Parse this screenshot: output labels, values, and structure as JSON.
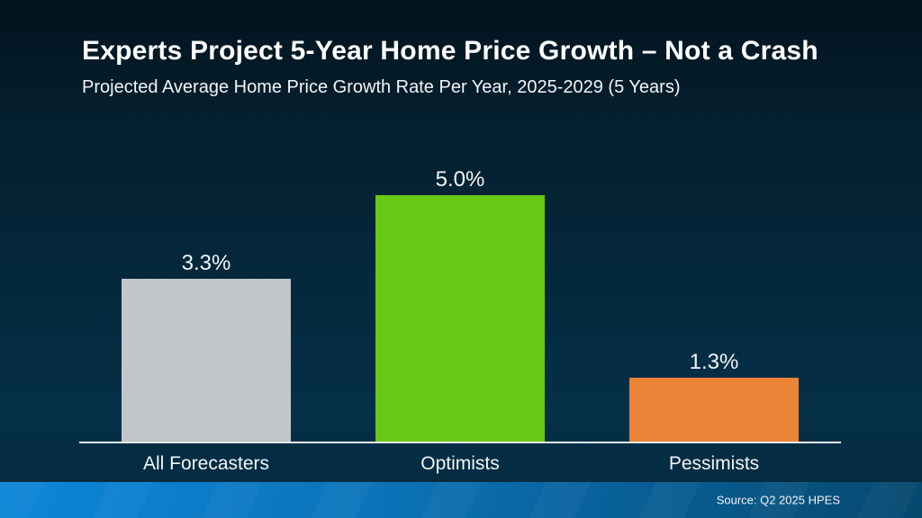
{
  "header": {
    "title": "Experts Project 5-Year Home Price Growth – Not a Crash",
    "subtitle": "Projected Average Home Price Growth Rate Per Year, 2025-2029 (5 Years)"
  },
  "chart_data": {
    "type": "bar",
    "title": "Experts Project 5-Year Home Price Growth – Not a Crash",
    "subtitle": "Projected Average Home Price Growth Rate Per Year, 2025-2029 (5 Years)",
    "categories": [
      "All Forecasters",
      "Optimists",
      "Pessimists"
    ],
    "values": [
      3.3,
      5.0,
      1.3
    ],
    "value_labels": [
      "3.3%",
      "5.0%",
      "1.3%"
    ],
    "bar_colors": [
      "#c2c6c9",
      "#68c814",
      "#ec8438"
    ],
    "xlabel": "",
    "ylabel": "",
    "ylim": [
      0,
      5.5
    ],
    "grid": false,
    "legend": false,
    "data_labels_position": "above-bar"
  },
  "footer": {
    "source": "Source: Q2 2025 HPES"
  },
  "colors": {
    "background_top": "#02141f",
    "background_bottom": "#04293c",
    "bar_all_forecasters": "#c2c6c9",
    "bar_optimists": "#68c814",
    "bar_pessimists": "#ec8438",
    "axis_line": "#e8ecef",
    "footer_band_left": "#0d86d9",
    "footer_band_right": "#07486e",
    "text": "#ffffff"
  }
}
